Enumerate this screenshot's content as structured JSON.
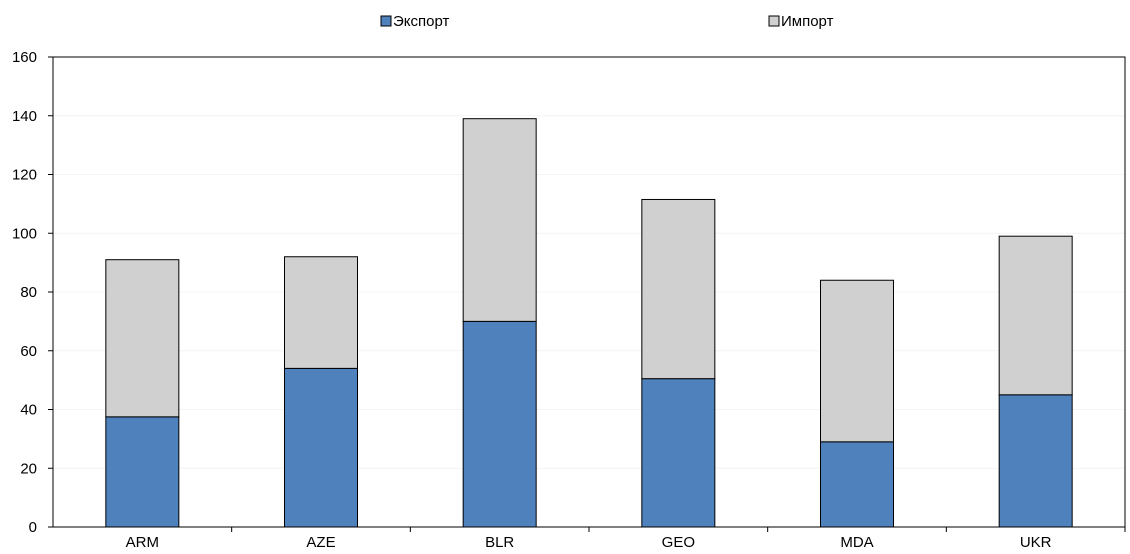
{
  "chart_data": {
    "type": "bar",
    "stacked": true,
    "title": "",
    "xlabel": "",
    "ylabel": "",
    "categories": [
      "ARM",
      "AZE",
      "BLR",
      "GEO",
      "MDA",
      "UKR"
    ],
    "series": [
      {
        "name": "Экспорт",
        "color": "#4f81bd",
        "values": [
          37.5,
          54,
          70,
          50.5,
          29,
          45
        ]
      },
      {
        "name": "Импорт",
        "color": "#d0d0d0",
        "values": [
          53.5,
          38,
          69,
          61,
          55,
          54
        ]
      }
    ],
    "ylim": [
      0,
      160
    ],
    "yticks": [
      0,
      20,
      40,
      60,
      80,
      100,
      120,
      140,
      160
    ],
    "grid": true,
    "legend": "top"
  }
}
